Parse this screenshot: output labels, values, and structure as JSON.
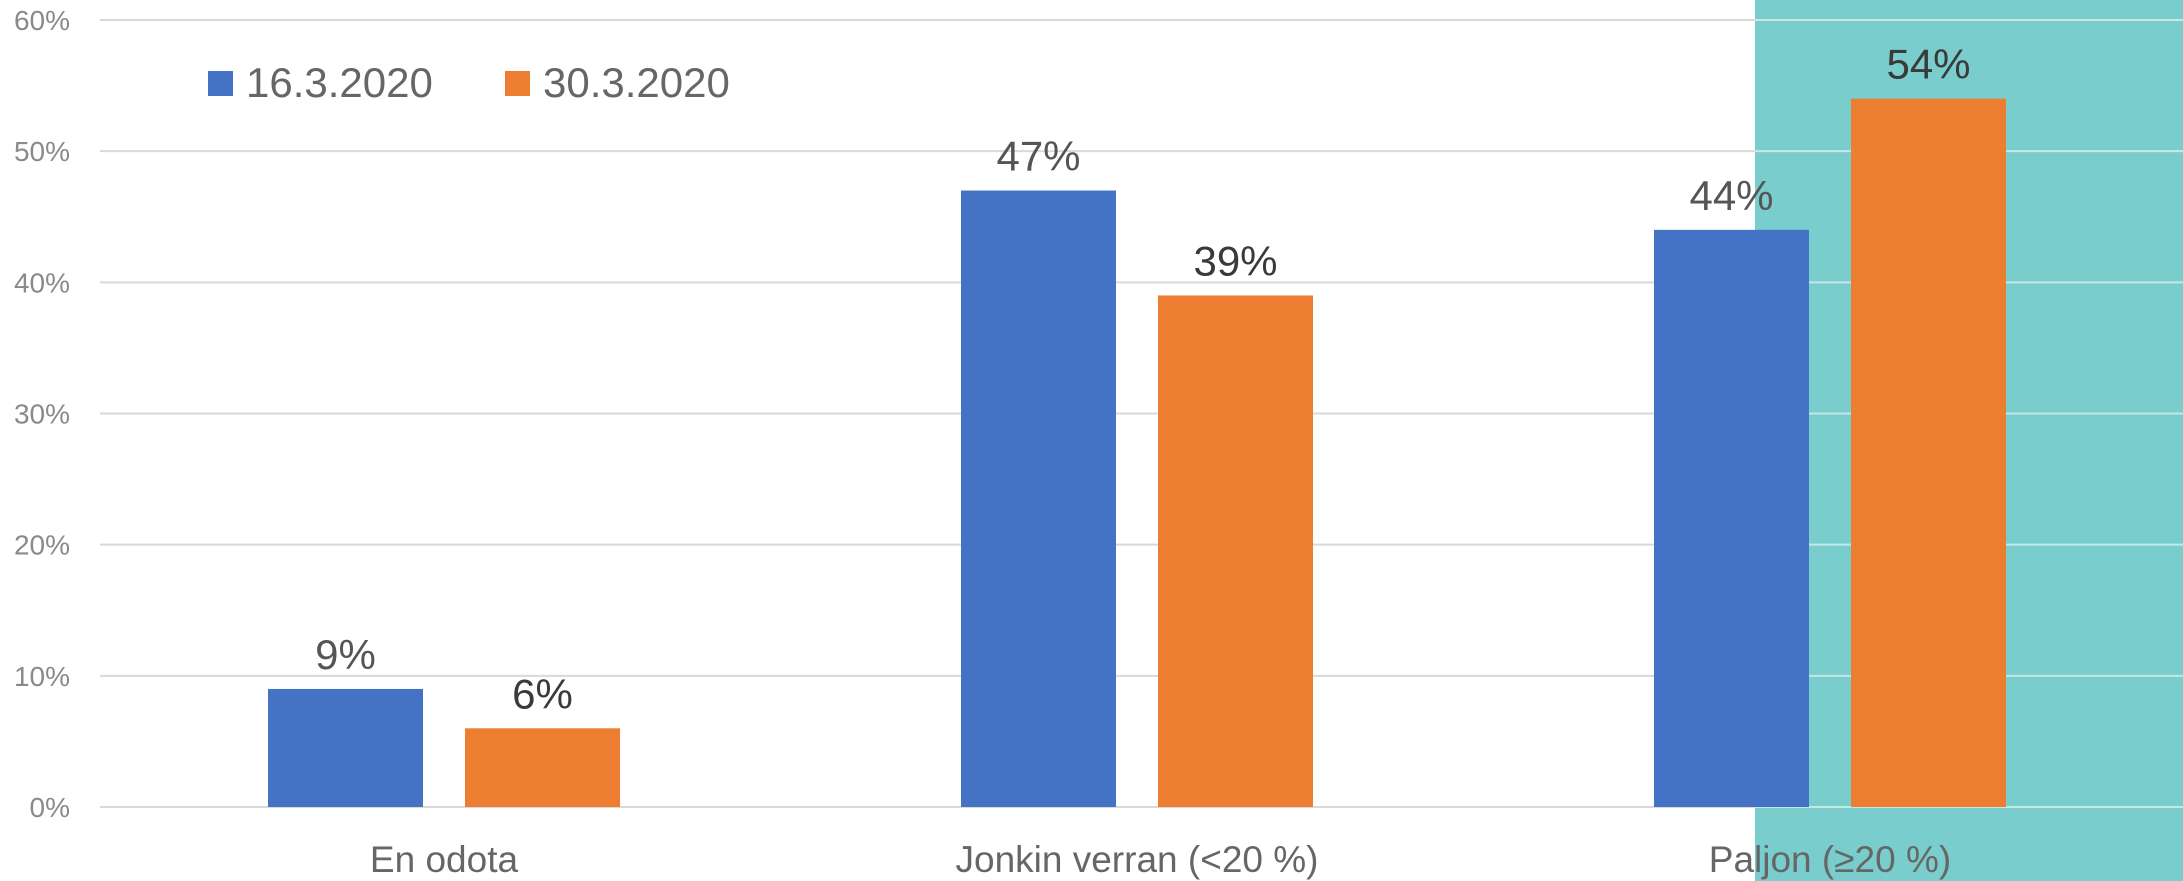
{
  "chart_data": {
    "type": "bar",
    "categories": [
      "En odota",
      "Jonkin verran (<20 %)",
      "Paljon (≥20 %)"
    ],
    "series": [
      {
        "name": "16.3.2020",
        "values": [
          9,
          47,
          44
        ],
        "labels": [
          "9%",
          "47%",
          "44%"
        ],
        "color": "#4472c4"
      },
      {
        "name": "30.3.2020",
        "values": [
          6,
          39,
          54
        ],
        "labels": [
          "6%",
          "39%",
          "54%"
        ],
        "color": "#ed7d31"
      }
    ],
    "ylim": [
      0,
      60
    ],
    "yticks": [
      0,
      10,
      20,
      30,
      40,
      50,
      60
    ],
    "ytick_labels": [
      "0%",
      "10%",
      "20%",
      "30%",
      "40%",
      "50%",
      "60%"
    ],
    "grid": true,
    "legend_position": "top-left",
    "highlighted_category": "Paljon (≥20 %)",
    "highlight_color": "#79cdcc",
    "title": "",
    "xlabel": "",
    "ylabel": ""
  }
}
